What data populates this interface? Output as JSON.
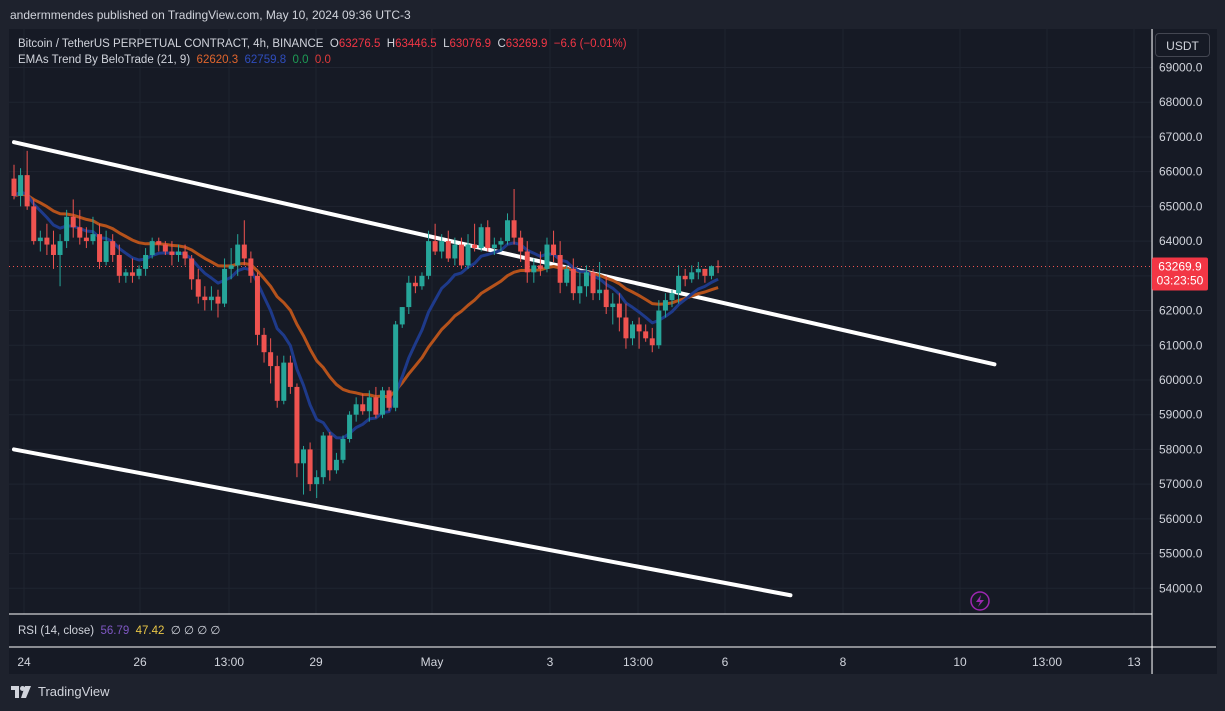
{
  "publisher": "andermmendes published on TradingView.com, May 10, 2024 09:36 UTC-3",
  "brand": "TradingView",
  "currency_button": "USDT",
  "legend": {
    "symbol": "Bitcoin / TetherUS PERPETUAL CONTRACT, 4h, BINANCE",
    "o_label": "O",
    "o_value": "63276.5",
    "h_label": "H",
    "h_value": "63446.5",
    "l_label": "L",
    "l_value": "63076.9",
    "c_label": "C",
    "c_value": "63269.9",
    "change": "−6.6 (−0.01%)",
    "indicator": "EMAs Trend By BeloTrade (21, 9)",
    "ema21_value": "62620.3",
    "ema9_value": "62759.8",
    "val3": "0.0",
    "val4": "0.0"
  },
  "rsi": {
    "label": "RSI (14, close)",
    "value1": "56.79",
    "value2": "47.42",
    "zeros": "∅ ∅ ∅ ∅"
  },
  "price_label": {
    "value": "63269.9",
    "countdown": "03:23:50"
  },
  "colors": {
    "up": "#26a69a",
    "down": "#ef5350",
    "ema_fast": "#1e3a8a",
    "ema_slow": "#b5521b",
    "trendline": "#ffffff",
    "bg": "#161a25"
  },
  "chart_data": {
    "type": "candlestick",
    "timeframe": "4h",
    "y_axis": {
      "min": 53400,
      "max": 69600,
      "ticks": [
        "54000.0",
        "55000.0",
        "56000.0",
        "57000.0",
        "58000.0",
        "59000.0",
        "60000.0",
        "61000.0",
        "62000.0",
        "63000.0",
        "64000.0",
        "65000.0",
        "66000.0",
        "67000.0",
        "68000.0",
        "69000.0"
      ]
    },
    "x_axis": {
      "labels": [
        "24",
        "26",
        "13:00",
        "29",
        "May",
        "3",
        "13:00",
        "6",
        "8",
        "10",
        "13:00",
        "13"
      ]
    },
    "candles": [
      [
        65800,
        66200,
        65200,
        65300
      ],
      [
        65300,
        66100,
        65000,
        65900
      ],
      [
        65900,
        66600,
        64900,
        65000
      ],
      [
        65000,
        65200,
        63900,
        64000
      ],
      [
        64000,
        64300,
        63700,
        64100
      ],
      [
        64100,
        64500,
        63600,
        63900
      ],
      [
        63900,
        64300,
        63200,
        63600
      ],
      [
        63600,
        64200,
        62700,
        64000
      ],
      [
        64000,
        64900,
        63800,
        64700
      ],
      [
        64700,
        65200,
        64100,
        64400
      ],
      [
        64400,
        64900,
        63900,
        64100
      ],
      [
        64100,
        64400,
        63800,
        64000
      ],
      [
        64000,
        64700,
        63900,
        64200
      ],
      [
        64200,
        64500,
        63200,
        63400
      ],
      [
        63400,
        64300,
        63300,
        64000
      ],
      [
        64000,
        64200,
        63400,
        63600
      ],
      [
        63600,
        63900,
        62800,
        63000
      ],
      [
        63000,
        63200,
        62800,
        63100
      ],
      [
        63100,
        63500,
        62800,
        63000
      ],
      [
        63000,
        63300,
        62900,
        63200
      ],
      [
        63200,
        63800,
        63000,
        63600
      ],
      [
        63600,
        64100,
        63500,
        64000
      ],
      [
        64000,
        64100,
        63700,
        63900
      ],
      [
        63900,
        64000,
        63600,
        63700
      ],
      [
        63700,
        64000,
        63300,
        63600
      ],
      [
        63600,
        63900,
        63400,
        63700
      ],
      [
        63700,
        63900,
        63300,
        63500
      ],
      [
        63500,
        63600,
        62600,
        62900
      ],
      [
        62900,
        63200,
        62200,
        62400
      ],
      [
        62400,
        62700,
        62000,
        62300
      ],
      [
        62300,
        62700,
        62000,
        62400
      ],
      [
        62400,
        62600,
        61800,
        62200
      ],
      [
        62200,
        63500,
        62100,
        63200
      ],
      [
        63200,
        63800,
        62900,
        63300
      ],
      [
        63300,
        64200,
        63000,
        63900
      ],
      [
        63900,
        64600,
        63300,
        63500
      ],
      [
        63500,
        63700,
        62800,
        63000
      ],
      [
        63000,
        63100,
        61000,
        61300
      ],
      [
        61300,
        61500,
        60500,
        60800
      ],
      [
        60800,
        61200,
        59900,
        60400
      ],
      [
        60400,
        60700,
        59200,
        59400
      ],
      [
        59400,
        60700,
        59300,
        60500
      ],
      [
        60500,
        60700,
        59600,
        59800
      ],
      [
        59800,
        59900,
        57200,
        57600
      ],
      [
        57600,
        58100,
        56700,
        58000
      ],
      [
        58000,
        58200,
        56800,
        57000
      ],
      [
        57000,
        57400,
        56600,
        57200
      ],
      [
        57200,
        58500,
        57000,
        58400
      ],
      [
        58400,
        58500,
        57100,
        57400
      ],
      [
        57400,
        57900,
        57300,
        57700
      ],
      [
        57700,
        58400,
        57600,
        58300
      ],
      [
        58300,
        59100,
        58200,
        59000
      ],
      [
        59000,
        59500,
        58800,
        59300
      ],
      [
        59300,
        59600,
        59000,
        59100
      ],
      [
        59100,
        59700,
        58800,
        59500
      ],
      [
        59500,
        59800,
        58900,
        59000
      ],
      [
        59000,
        59800,
        58900,
        59700
      ],
      [
        59700,
        59800,
        59100,
        59200
      ],
      [
        59200,
        61700,
        59100,
        61600
      ],
      [
        61600,
        62100,
        61500,
        62100
      ],
      [
        62100,
        63000,
        61900,
        62800
      ],
      [
        62800,
        63000,
        62500,
        62700
      ],
      [
        62700,
        63100,
        62600,
        63000
      ],
      [
        63000,
        64300,
        62900,
        64000
      ],
      [
        64000,
        64500,
        63600,
        63700
      ],
      [
        63700,
        64200,
        63500,
        64000
      ],
      [
        64000,
        64300,
        63400,
        63500
      ],
      [
        63500,
        64100,
        63300,
        63900
      ],
      [
        63900,
        64100,
        63200,
        63300
      ],
      [
        63300,
        64200,
        63200,
        63900
      ],
      [
        63900,
        64500,
        63700,
        63800
      ],
      [
        63800,
        64500,
        63700,
        64400
      ],
      [
        64400,
        64600,
        63700,
        63800
      ],
      [
        63800,
        64100,
        63600,
        63900
      ],
      [
        63900,
        64100,
        63700,
        64000
      ],
      [
        64000,
        64800,
        63900,
        64600
      ],
      [
        64600,
        65500,
        63900,
        64100
      ],
      [
        64100,
        64300,
        63400,
        63700
      ],
      [
        63700,
        64000,
        62800,
        63100
      ],
      [
        63100,
        63500,
        62800,
        63300
      ],
      [
        63300,
        63700,
        63000,
        63200
      ],
      [
        63200,
        64100,
        63100,
        63900
      ],
      [
        63900,
        64300,
        63400,
        63600
      ],
      [
        63600,
        64000,
        62500,
        62800
      ],
      [
        62800,
        63300,
        62700,
        63200
      ],
      [
        63200,
        63500,
        62300,
        62500
      ],
      [
        62500,
        63100,
        62200,
        62700
      ],
      [
        62700,
        63300,
        62400,
        63100
      ],
      [
        63100,
        63200,
        62300,
        62500
      ],
      [
        62500,
        63400,
        62300,
        62600
      ],
      [
        62600,
        63000,
        61900,
        62100
      ],
      [
        62100,
        62500,
        61600,
        62200
      ],
      [
        62200,
        62500,
        61400,
        61800
      ],
      [
        61800,
        62200,
        60900,
        61200
      ],
      [
        61200,
        61700,
        61000,
        61600
      ],
      [
        61600,
        61800,
        60900,
        61400
      ],
      [
        61400,
        61600,
        61100,
        61200
      ],
      [
        61200,
        61500,
        60800,
        61000
      ],
      [
        61000,
        62300,
        60900,
        62000
      ],
      [
        62000,
        62500,
        61800,
        62300
      ],
      [
        62300,
        62600,
        62100,
        62500
      ],
      [
        62500,
        63300,
        62200,
        63000
      ],
      [
        63000,
        63200,
        62700,
        62900
      ],
      [
        62900,
        63300,
        62800,
        63100
      ],
      [
        63100,
        63400,
        62900,
        63200
      ],
      [
        63200,
        63200,
        62800,
        63000
      ],
      [
        63000,
        63300,
        62900,
        63276.5
      ],
      [
        63276.5,
        63446.5,
        63076.9,
        63269.9
      ]
    ],
    "ema_fast_name": "EMA 9",
    "ema_slow_name": "EMA 21",
    "trendlines": [
      {
        "name": "upper",
        "from": {
          "bar": 0,
          "price": 66850
        },
        "to": {
          "bar": 149,
          "price": 60450
        }
      },
      {
        "name": "lower",
        "from": {
          "bar": 0,
          "price": 58000
        },
        "to": {
          "bar": 118,
          "price": 53800
        }
      }
    ],
    "last_price": 63269.9
  }
}
